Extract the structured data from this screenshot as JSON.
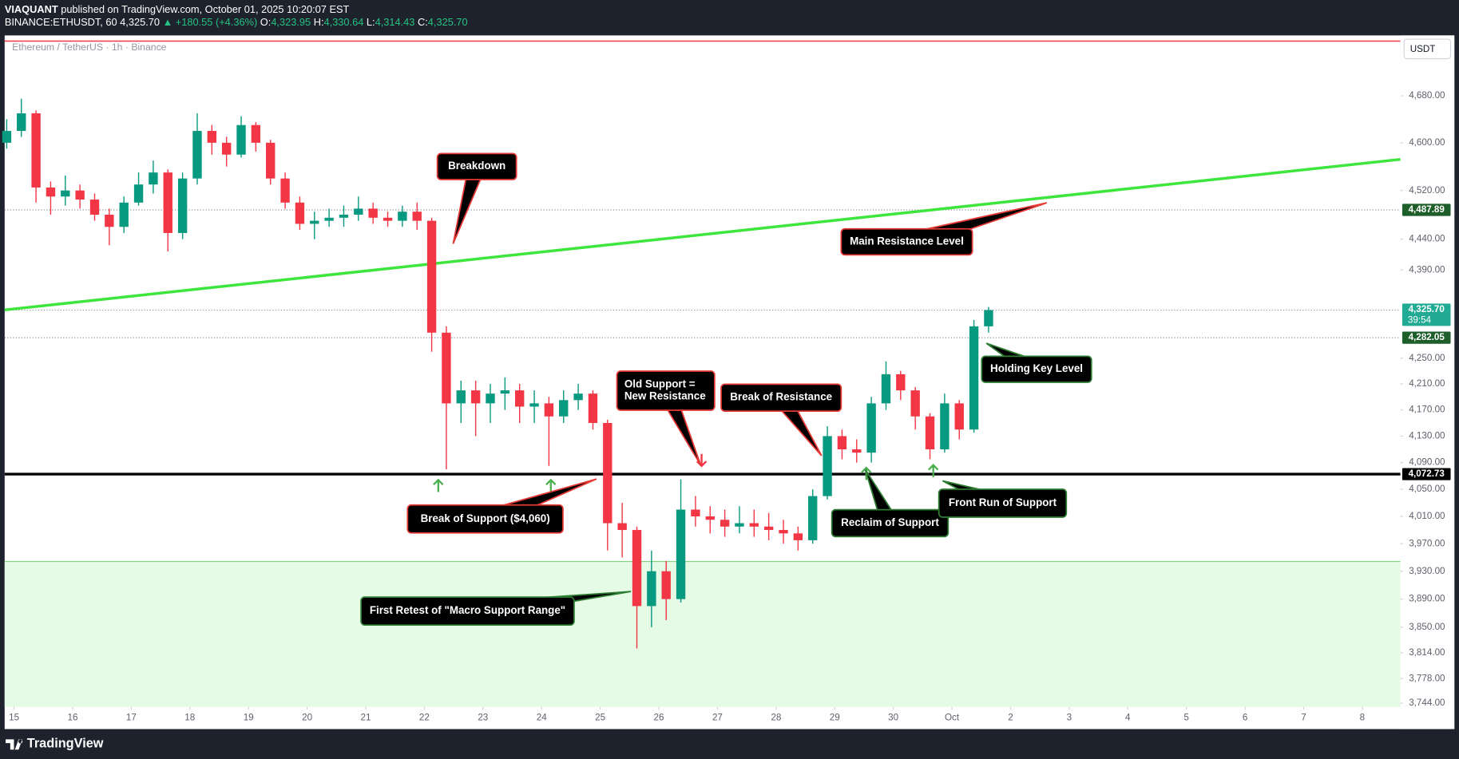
{
  "header": {
    "publisher": "VIAQUANT",
    "published": "published on TradingView.com, October 01, 2025 10:20:07 EST",
    "symbol": "BINANCE:ETHUSDT, 60",
    "last": "4,325.70",
    "change": "▲ +180.55 (+4.36%)",
    "ohlc": [
      [
        "O:",
        "4,323.95"
      ],
      [
        "H:",
        "4,330.64"
      ],
      [
        "L:",
        "4,314.43"
      ],
      [
        "C:",
        "4,325.70"
      ]
    ]
  },
  "chart_data": {
    "type": "candlestick",
    "title": "Ethereum / TetherUS · 1h · Binance",
    "y_unit": "USDT",
    "x": [
      14.875,
      15.125,
      15.375,
      15.625,
      15.875,
      16.125,
      16.375,
      16.625,
      16.875,
      17.125,
      17.375,
      17.625,
      17.875,
      18.125,
      18.375,
      18.625,
      18.875,
      19.125,
      19.375,
      19.625,
      19.875,
      20.125,
      20.375,
      20.625,
      20.875,
      21.125,
      21.375,
      21.625,
      21.875,
      22.125,
      22.375,
      22.625,
      22.875,
      23.125,
      23.375,
      23.625,
      23.875,
      24.125,
      24.375,
      24.625,
      24.875,
      25.125,
      25.375,
      25.625,
      25.875,
      26.125,
      26.375,
      26.625,
      26.875,
      27.125,
      27.375,
      27.625,
      27.875,
      28.125,
      28.375,
      28.625,
      28.875,
      29.125,
      29.375,
      29.625,
      29.875,
      30.125,
      30.375,
      30.625,
      30.875,
      31.125,
      31.375,
      31.625
    ],
    "open": [
      4600,
      4620,
      4650,
      4525,
      4510,
      4520,
      4505,
      4480,
      4460,
      4500,
      4530,
      4550,
      4450,
      4540,
      4620,
      4600,
      4580,
      4630,
      4600,
      4540,
      4500,
      4465,
      4470,
      4475,
      4480,
      4490,
      4475,
      4470,
      4485,
      4470,
      4290,
      4180,
      4200,
      4180,
      4195,
      4200,
      4175,
      4180,
      4160,
      4185,
      4195,
      4150,
      4000,
      3990,
      3880,
      3930,
      3890,
      4020,
      4010,
      4005,
      3995,
      4000,
      3995,
      3990,
      3985,
      3975,
      4040,
      4130,
      4110,
      4105,
      4180,
      4225,
      4200,
      4160,
      4110,
      4180,
      4140,
      4300
    ],
    "high": [
      4640,
      4675,
      4655,
      4535,
      4545,
      4530,
      4515,
      4490,
      4510,
      4550,
      4570,
      4555,
      4550,
      4650,
      4630,
      4610,
      4645,
      4635,
      4605,
      4550,
      4510,
      4485,
      4490,
      4495,
      4510,
      4500,
      4485,
      4495,
      4500,
      4475,
      4300,
      4215,
      4215,
      4210,
      4220,
      4210,
      4200,
      4190,
      4200,
      4210,
      4200,
      4155,
      4030,
      3995,
      3960,
      3945,
      4065,
      4040,
      4025,
      4020,
      4025,
      4020,
      4015,
      4005,
      3995,
      4050,
      4145,
      4140,
      4125,
      4190,
      4245,
      4230,
      4205,
      4165,
      4195,
      4185,
      4310,
      4330.64
    ],
    "low": [
      4590,
      4610,
      4500,
      4480,
      4495,
      4490,
      4470,
      4430,
      4450,
      4495,
      4515,
      4420,
      4440,
      4530,
      4580,
      4560,
      4575,
      4585,
      4530,
      4490,
      4455,
      4440,
      4460,
      4460,
      4470,
      4465,
      4460,
      4460,
      4455,
      4260,
      4080,
      4150,
      4130,
      4150,
      4170,
      4150,
      4150,
      4085,
      4150,
      4170,
      4140,
      3960,
      3950,
      3820,
      3850,
      3860,
      3885,
      3995,
      3985,
      3980,
      3985,
      3980,
      3975,
      3970,
      3960,
      3970,
      4035,
      4095,
      4090,
      4090,
      4170,
      4185,
      4140,
      4095,
      4105,
      4125,
      4135,
      4290
    ],
    "close": [
      4620,
      4650,
      4525,
      4510,
      4520,
      4505,
      4480,
      4460,
      4500,
      4530,
      4550,
      4450,
      4540,
      4620,
      4600,
      4580,
      4630,
      4600,
      4540,
      4500,
      4465,
      4470,
      4475,
      4480,
      4490,
      4475,
      4470,
      4485,
      4470,
      4290,
      4180,
      4200,
      4180,
      4195,
      4200,
      4175,
      4180,
      4160,
      4185,
      4195,
      4150,
      4000,
      3990,
      3880,
      3930,
      3890,
      4020,
      4010,
      4005,
      3995,
      4000,
      3995,
      3990,
      3985,
      3975,
      4040,
      4130,
      4110,
      4105,
      4180,
      4225,
      4200,
      4160,
      4110,
      4180,
      4140,
      4300,
      4325.7
    ],
    "up_color": "#089981",
    "down_color": "#f23645",
    "xlim": [
      14.84,
      38.65
    ],
    "xticks": [
      15,
      16,
      17,
      18,
      19,
      20,
      21,
      22,
      23,
      24,
      25,
      26,
      27,
      28,
      29,
      30,
      {
        "value": 31,
        "label": "Oct"
      },
      {
        "value": 32,
        "label": "2"
      },
      {
        "value": 33,
        "label": "3"
      },
      {
        "value": 34,
        "label": "4"
      },
      {
        "value": 35,
        "label": "5"
      },
      {
        "value": 36,
        "label": "6"
      },
      {
        "value": 37,
        "label": "7"
      },
      {
        "value": 38,
        "label": "8"
      }
    ],
    "ylim": [
      3739,
      4785
    ],
    "log_y": true,
    "yticks": [
      {
        "value": 3744,
        "label": "3,744.00"
      },
      {
        "value": 3778,
        "label": "3,778.00"
      },
      {
        "value": 3814,
        "label": "3,814.00"
      },
      {
        "value": 3850,
        "label": "3,850.00"
      },
      {
        "value": 3890,
        "label": "3,890.00"
      },
      {
        "value": 3930,
        "label": "3,930.00"
      },
      {
        "value": 3970,
        "label": "3,970.00"
      },
      {
        "value": 4010,
        "label": "4,010.00"
      },
      {
        "value": 4050,
        "label": "4,050.00"
      },
      {
        "value": 4090,
        "label": "4,090.00"
      },
      {
        "value": 4130,
        "label": "4,130.00"
      },
      {
        "value": 4170,
        "label": "4,170.00"
      },
      {
        "value": 4210,
        "label": "4,210.00"
      },
      {
        "value": 4250,
        "label": "4,250.00"
      },
      {
        "value": 4390,
        "label": "4,390.00"
      },
      {
        "value": 4440,
        "label": "4,440.00"
      },
      {
        "value": 4520,
        "label": "4,520.00"
      },
      {
        "value": 4600,
        "label": "4,600.00"
      },
      {
        "value": 4680,
        "label": "4,680.00"
      }
    ],
    "levels": [
      {
        "value": 4487.89,
        "label": "4,487.89",
        "color": "#1e5e2a",
        "style": "dotted"
      },
      {
        "value": 4325.7,
        "label": "4,325.70",
        "timer": "39:54",
        "color": "#22ab94",
        "style": "dotted"
      },
      {
        "value": 4282.05,
        "label": "4,282.05",
        "color": "#1e5e2a",
        "style": "dotted"
      },
      {
        "value": 4072.73,
        "label": "4,072.73",
        "color": "#000000",
        "style": "solid"
      }
    ],
    "resistance_line": {
      "x": [
        14.84,
        38.65
      ],
      "y": [
        4326,
        4572
      ],
      "color": "#3de53d"
    },
    "support_zone": {
      "top": 3944,
      "color": "#e5fbe5",
      "edge": "#7cd67c"
    },
    "top_line": {
      "value": 4775,
      "color": "#f23645"
    },
    "annotations": [
      {
        "text": [
          "Breakdown"
        ],
        "border": "#e53935"
      },
      {
        "text": [
          "Main Resistance Level"
        ],
        "border": "#e53935"
      },
      {
        "text": [
          "Holding Key Level"
        ],
        "border": "#2e7d32"
      },
      {
        "text": [
          "Old Support =",
          "New Resistance"
        ],
        "border": "#e53935"
      },
      {
        "text": [
          "Break of Resistance"
        ],
        "border": "#e53935"
      },
      {
        "text": [
          "Break of Support ($4,060)"
        ],
        "border": "#e53935"
      },
      {
        "text": [
          "Reclaim of Support"
        ],
        "border": "#2e7d32"
      },
      {
        "text": [
          "Front Run of Support"
        ],
        "border": "#2e7d32"
      },
      {
        "text": [
          "First Retest of \"Macro Support Range\""
        ],
        "border": "#2e7d32"
      }
    ]
  },
  "footer": {
    "brand": "TradingView"
  }
}
